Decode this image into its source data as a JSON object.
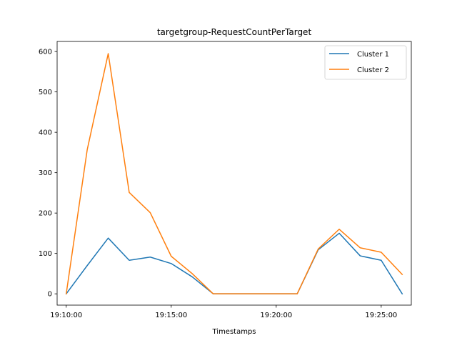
{
  "chart_data": {
    "type": "line",
    "title": "targetgroup-RequestCountPerTarget",
    "xlabel": "Timestamps",
    "ylabel": "",
    "x": [
      "19:10:00",
      "19:11:00",
      "19:12:00",
      "19:13:00",
      "19:14:00",
      "19:15:00",
      "19:16:00",
      "19:17:00",
      "19:18:00",
      "19:19:00",
      "19:20:00",
      "19:21:00",
      "19:22:00",
      "19:23:00",
      "19:24:00",
      "19:25:00",
      "19:26:00"
    ],
    "xticks": [
      "19:10:00",
      "19:15:00",
      "19:20:00",
      "19:25:00"
    ],
    "yticks": [
      0,
      100,
      200,
      300,
      400,
      500,
      600
    ],
    "ylim": [
      -28,
      625
    ],
    "xlim": [
      "19:09:34",
      "19:26:26"
    ],
    "grid": false,
    "legend_position": "top-right",
    "series": [
      {
        "name": "Cluster 1",
        "color": "#1f77b4",
        "values": [
          0,
          70,
          138,
          83,
          91,
          75,
          42,
          0,
          0,
          0,
          0,
          0,
          109,
          150,
          94,
          83,
          0
        ]
      },
      {
        "name": "Cluster 2",
        "color": "#ff7f0e",
        "values": [
          0,
          357,
          595,
          251,
          201,
          93,
          50,
          0,
          0,
          0,
          0,
          0,
          111,
          160,
          114,
          103,
          48
        ]
      }
    ]
  }
}
